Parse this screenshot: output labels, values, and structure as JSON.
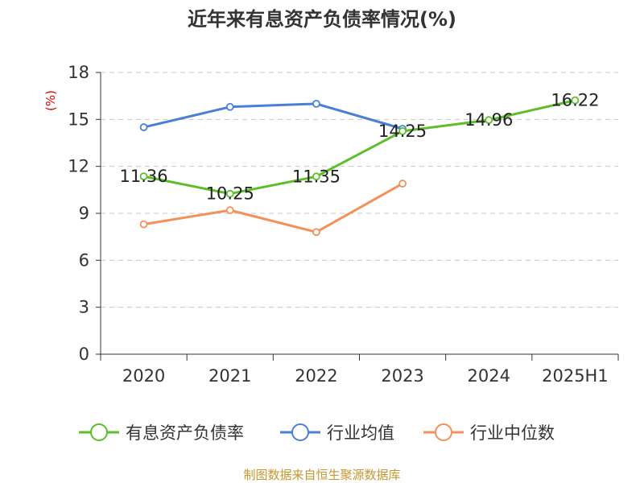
{
  "chart_data": {
    "type": "line",
    "title": "近年来有息资产负债率情况(%)",
    "ylabel": "(%)",
    "xlabel": "",
    "categories": [
      "2020",
      "2021",
      "2022",
      "2023",
      "2024",
      "2025H1"
    ],
    "ylim": [
      0,
      18
    ],
    "yticks": [
      0,
      3,
      6,
      9,
      12,
      15,
      18
    ],
    "grid": true,
    "legend_position": "bottom",
    "series": [
      {
        "name": "有息资产负债率",
        "color": "#5cbf2a",
        "values": [
          11.36,
          10.25,
          11.35,
          14.25,
          14.96,
          16.22
        ],
        "labels": [
          "11.36",
          "10.25",
          "11.35",
          "14.25",
          "14.96",
          "16.22"
        ]
      },
      {
        "name": "行业均值",
        "color": "#4a7fd9",
        "values": [
          14.5,
          15.8,
          16.0,
          14.4,
          null,
          null
        ]
      },
      {
        "name": "行业中位数",
        "color": "#f4905a",
        "values": [
          8.3,
          9.2,
          7.8,
          10.9,
          null,
          null
        ]
      }
    ]
  },
  "source_text": "制图数据来自恒生聚源数据库"
}
